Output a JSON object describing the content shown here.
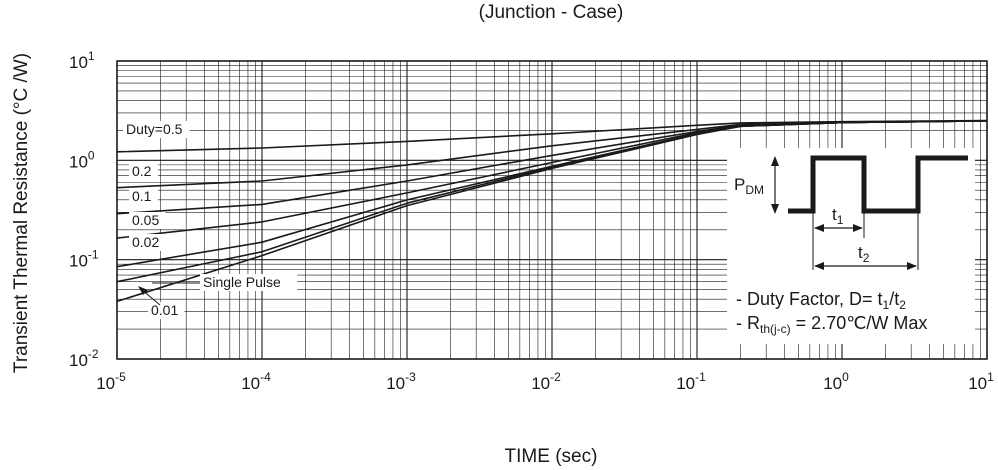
{
  "chart_data": {
    "type": "line",
    "title": "(Junction - Case)",
    "xlabel": "TIME (sec)",
    "ylabel": "Transient Thermal Resistance (°C /W)",
    "x_scale": "log",
    "y_scale": "log",
    "xlim": [
      1e-05,
      10
    ],
    "ylim": [
      0.01,
      10
    ],
    "x_ticks": [
      {
        "value": 1e-05,
        "base": "10",
        "exp": "-5"
      },
      {
        "value": 0.0001,
        "base": "10",
        "exp": "-4"
      },
      {
        "value": 0.001,
        "base": "10",
        "exp": "-3"
      },
      {
        "value": 0.01,
        "base": "10",
        "exp": "-2"
      },
      {
        "value": 0.1,
        "base": "10",
        "exp": "-1"
      },
      {
        "value": 1,
        "base": "10",
        "exp": "0"
      },
      {
        "value": 10,
        "base": "10",
        "exp": "1"
      }
    ],
    "y_ticks": [
      {
        "value": 0.01,
        "base": "10",
        "exp": "-2"
      },
      {
        "value": 0.1,
        "base": "10",
        "exp": "-1"
      },
      {
        "value": 1,
        "base": "10",
        "exp": "0"
      },
      {
        "value": 10,
        "base": "10",
        "exp": "1"
      }
    ],
    "grid": true,
    "series": [
      {
        "name": "Duty=0.5",
        "x": [
          1e-05,
          0.0001,
          0.001,
          0.01,
          0.1,
          0.2,
          1,
          10
        ],
        "y": [
          1.22,
          1.33,
          1.55,
          1.85,
          2.25,
          2.38,
          2.45,
          2.52
        ]
      },
      {
        "name": "0.2",
        "x": [
          1e-05,
          0.0001,
          0.001,
          0.01,
          0.1,
          0.2,
          1,
          10
        ],
        "y": [
          0.53,
          0.62,
          0.9,
          1.4,
          2.05,
          2.3,
          2.42,
          2.5
        ]
      },
      {
        "name": "0.1",
        "x": [
          1e-05,
          0.0001,
          0.001,
          0.01,
          0.1,
          0.2,
          1,
          10
        ],
        "y": [
          0.29,
          0.36,
          0.62,
          1.12,
          1.95,
          2.25,
          2.4,
          2.5
        ]
      },
      {
        "name": "0.05",
        "x": [
          1e-05,
          0.0001,
          0.001,
          0.01,
          0.1,
          0.2,
          1,
          10
        ],
        "y": [
          0.165,
          0.24,
          0.47,
          0.95,
          1.9,
          2.22,
          2.4,
          2.5
        ]
      },
      {
        "name": "0.02",
        "x": [
          1e-05,
          0.0001,
          0.001,
          0.01,
          0.1,
          0.2,
          1,
          10
        ],
        "y": [
          0.085,
          0.15,
          0.4,
          0.87,
          1.85,
          2.2,
          2.4,
          2.5
        ]
      },
      {
        "name": "0.01",
        "x": [
          1e-05,
          0.0001,
          0.001,
          0.01,
          0.1,
          0.2,
          1,
          10
        ],
        "y": [
          0.06,
          0.12,
          0.37,
          0.85,
          1.85,
          2.2,
          2.4,
          2.5
        ]
      },
      {
        "name": "Single Pulse",
        "x": [
          1e-05,
          0.0001,
          0.001,
          0.01,
          0.1,
          0.2,
          1,
          10
        ],
        "y": [
          0.038,
          0.11,
          0.35,
          0.83,
          1.82,
          2.2,
          2.4,
          2.5
        ]
      }
    ],
    "annotations": {
      "pulse_label_base": "P",
      "pulse_label_sub": "DM",
      "t1_base": "t",
      "t1_sub": "1",
      "t2_base": "t",
      "t2_sub": "2",
      "duty_text": "- Duty Factor, D= t",
      "duty_sub1": "1",
      "duty_mid": "/t",
      "duty_sub2": "2",
      "rth_prefix": "- R",
      "rth_sub": "th(j-c)",
      "rth_suffix": " = 2.70℃/W Max"
    }
  }
}
